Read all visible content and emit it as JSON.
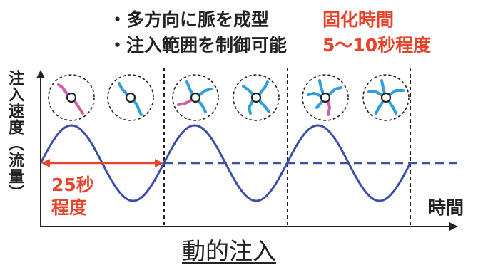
{
  "bullets": [
    {
      "marker": "・",
      "text": "多方向に脈を成型",
      "detail": "固化時間"
    },
    {
      "marker": "・",
      "text": "注入範囲を制御可能",
      "detail": "5〜10秒程度"
    }
  ],
  "axes": {
    "y_label": "注入速度（流量）",
    "x_label": "時間"
  },
  "period_label_line1": "25秒",
  "period_label_line2": "程度",
  "caption": "動的注入",
  "colors": {
    "wave": "#3b4fa8",
    "accent": "#e8432b",
    "vein_pink": "#d05fa8",
    "vein_blue": "#2e9fd8",
    "text": "#222222"
  },
  "icons": [
    "vein-pattern-icon",
    "injection-hole-icon"
  ]
}
